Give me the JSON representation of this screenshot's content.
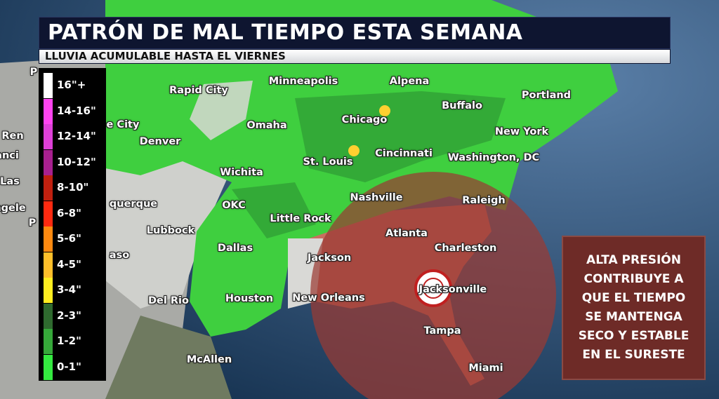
{
  "header": {
    "title": "PATRÓN DE MAL TIEMPO ESTA SEMANA",
    "subtitle": "LLUVIA ACUMULABLE HASTA EL VIERNES"
  },
  "legend": {
    "items": [
      {
        "label": "16\"+",
        "color": "#ffffff"
      },
      {
        "label": "14-16\"",
        "color": "#ff44f0"
      },
      {
        "label": "12-14\"",
        "color": "#de40d8"
      },
      {
        "label": "10-12\"",
        "color": "#a8208f"
      },
      {
        "label": "8-10\"",
        "color": "#c0200f"
      },
      {
        "label": "6-8\"",
        "color": "#ff2a10"
      },
      {
        "label": "5-6\"",
        "color": "#ff8a10"
      },
      {
        "label": "4-5\"",
        "color": "#ffbf2a"
      },
      {
        "label": "3-4\"",
        "color": "#ffee20"
      },
      {
        "label": "2-3\"",
        "color": "#2f6a2f"
      },
      {
        "label": "1-2\"",
        "color": "#36a83a"
      },
      {
        "label": "0-1\"",
        "color": "#34ea40"
      }
    ]
  },
  "cities": [
    {
      "name": "Rapid City"
    },
    {
      "name": "Minneapolis"
    },
    {
      "name": "Alpena"
    },
    {
      "name": "Portland"
    },
    {
      "name": "Buffalo"
    },
    {
      "name": "Chicago"
    },
    {
      "name": "Omaha"
    },
    {
      "name": "e City"
    },
    {
      "name": "Denver"
    },
    {
      "name": "New York"
    },
    {
      "name": "Cincinnati"
    },
    {
      "name": "Washington, DC"
    },
    {
      "name": "St. Louis"
    },
    {
      "name": "Wichita"
    },
    {
      "name": "Nashville"
    },
    {
      "name": "Raleigh"
    },
    {
      "name": "OKC"
    },
    {
      "name": "querque"
    },
    {
      "name": "Little Rock"
    },
    {
      "name": "Lubbock"
    },
    {
      "name": "Atlanta"
    },
    {
      "name": "Charleston"
    },
    {
      "name": "Dallas"
    },
    {
      "name": "Jackson"
    },
    {
      "name": "aso"
    },
    {
      "name": "Jacksonville"
    },
    {
      "name": "Houston"
    },
    {
      "name": "New Orleans"
    },
    {
      "name": "Del Rio"
    },
    {
      "name": "Tampa"
    },
    {
      "name": "McAllen"
    },
    {
      "name": "Miami"
    },
    {
      "name": "P"
    },
    {
      "name": "Ren"
    },
    {
      "name": "anci"
    },
    {
      "name": "Las"
    },
    {
      "name": "ngele"
    },
    {
      "name": "P"
    }
  ],
  "high_pressure": {
    "label": "H",
    "zone_color": "#9a3a33"
  },
  "info": {
    "text": "ALTA PRESIÓN\nCONTRIBUYE A\nQUE EL TIEMPO\nSE MANTENGA\nSECO Y ESTABLE\nEN EL SURESTE"
  }
}
